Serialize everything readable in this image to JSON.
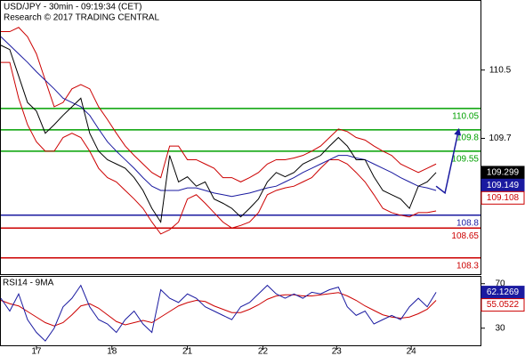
{
  "chart_data": [
    {
      "type": "line",
      "title": "USD/JPY - 30min - 09:19:34 (CET)",
      "subtitle": "Research © 2017 TRADING CENTRAL",
      "x": [
        0,
        1,
        2,
        3,
        4,
        5,
        6,
        7,
        8,
        9,
        10,
        11,
        12,
        13,
        14,
        15,
        16,
        17,
        18,
        19,
        20,
        21,
        22,
        23,
        24,
        25,
        26,
        27,
        28,
        29,
        30,
        31,
        32,
        33,
        34,
        35,
        36,
        37,
        38,
        39,
        40,
        41,
        42,
        43,
        44,
        45,
        46,
        47,
        48,
        49
      ],
      "xlim": [
        0,
        54
      ],
      "ylim": [
        108.11,
        111.31
      ],
      "yticks": [
        110.5,
        109.7
      ],
      "series": [
        {
          "color": "#cc0000",
          "values": [
            110.95,
            110.95,
            111.0,
            110.89,
            110.69,
            110.38,
            110.07,
            110.12,
            110.28,
            110.33,
            110.28,
            110.07,
            109.92,
            109.76,
            109.61,
            109.5,
            109.4,
            109.3,
            109.24,
            109.61,
            109.61,
            109.45,
            109.45,
            109.4,
            109.35,
            109.24,
            109.24,
            109.19,
            109.24,
            109.3,
            109.4,
            109.45,
            109.45,
            109.47,
            109.5,
            109.55,
            109.61,
            109.71,
            109.81,
            109.78,
            109.71,
            109.68,
            109.61,
            109.55,
            109.5,
            109.4,
            109.35,
            109.3,
            109.35,
            109.4
          ]
        },
        {
          "color": "#cc0000",
          "values": [
            110.59,
            110.59,
            110.17,
            109.86,
            109.66,
            109.55,
            109.55,
            109.71,
            109.76,
            109.71,
            109.55,
            109.35,
            109.24,
            109.19,
            109.09,
            108.99,
            108.88,
            108.72,
            108.58,
            108.63,
            108.72,
            108.99,
            109.04,
            108.94,
            108.83,
            108.72,
            108.65,
            108.68,
            108.72,
            108.83,
            109.04,
            109.09,
            109.12,
            109.14,
            109.19,
            109.24,
            109.35,
            109.45,
            109.45,
            109.4,
            109.3,
            109.19,
            109.04,
            108.88,
            108.83,
            108.8,
            108.78,
            108.83,
            108.83,
            108.85
          ]
        },
        {
          "color": "#1a1aa0",
          "values": [
            110.89,
            110.79,
            110.69,
            110.59,
            110.48,
            110.38,
            110.28,
            110.17,
            110.12,
            110.07,
            109.97,
            109.81,
            109.66,
            109.55,
            109.45,
            109.35,
            109.24,
            109.14,
            109.09,
            109.09,
            109.09,
            109.12,
            109.12,
            109.09,
            109.06,
            109.04,
            109.02,
            109.04,
            109.06,
            109.09,
            109.12,
            109.14,
            109.19,
            109.24,
            109.3,
            109.35,
            109.4,
            109.45,
            109.5,
            109.5,
            109.47,
            109.45,
            109.4,
            109.35,
            109.3,
            109.24,
            109.19,
            109.14,
            109.12,
            109.09
          ]
        },
        {
          "color": "#000000",
          "values": [
            110.79,
            110.74,
            110.43,
            110.12,
            110.02,
            109.76,
            109.86,
            109.97,
            110.07,
            110.17,
            109.76,
            109.55,
            109.45,
            109.4,
            109.35,
            109.24,
            109.09,
            108.88,
            108.72,
            109.5,
            109.19,
            109.25,
            109.14,
            109.19,
            108.99,
            108.94,
            108.88,
            108.78,
            108.88,
            108.99,
            109.19,
            109.3,
            109.25,
            109.3,
            109.4,
            109.45,
            109.5,
            109.61,
            109.71,
            109.61,
            109.45,
            109.45,
            109.25,
            109.09,
            109.04,
            108.99,
            108.88,
            109.14,
            109.19,
            109.3
          ]
        }
      ],
      "levels": [
        {
          "value": 110.05,
          "color": "#00a000"
        },
        {
          "value": 109.8,
          "color": "#00a000"
        },
        {
          "value": 109.55,
          "color": "#00a000"
        },
        {
          "value": 108.8,
          "color": "#1a1aa0"
        },
        {
          "value": 108.65,
          "color": "#cc0000"
        },
        {
          "value": 108.3,
          "color": "#cc0000"
        }
      ],
      "forecast": {
        "color": "#1a1aa0",
        "x": [
          49,
          50,
          51.5
        ],
        "values": [
          109.14,
          109.06,
          109.78
        ]
      },
      "last_values": [
        {
          "value": 109.299,
          "color": "#000000"
        },
        {
          "value": 109.149,
          "color": "#1a1aa0"
        },
        {
          "value": 109.108,
          "color": "#cc0000"
        }
      ]
    },
    {
      "type": "line",
      "title": "RSI14 - 9MA",
      "x": [
        0,
        1,
        2,
        3,
        4,
        5,
        6,
        7,
        8,
        9,
        10,
        11,
        12,
        13,
        14,
        15,
        16,
        17,
        18,
        19,
        20,
        21,
        22,
        23,
        24,
        25,
        26,
        27,
        28,
        29,
        30,
        31,
        32,
        33,
        34,
        35,
        36,
        37,
        38,
        39,
        40,
        41,
        42,
        43,
        44,
        45,
        46,
        47,
        48,
        49
      ],
      "xlim": [
        0,
        54
      ],
      "ylim": [
        14.6,
        76.2
      ],
      "yticks": [
        70,
        30
      ],
      "xticks": [
        {
          "value": 4,
          "label": "17"
        },
        {
          "value": 12.5,
          "label": "18"
        },
        {
          "value": 21,
          "label": "21"
        },
        {
          "value": 29.5,
          "label": "22"
        },
        {
          "value": 37.8,
          "label": "23"
        },
        {
          "value": 46.2,
          "label": "24"
        }
      ],
      "series": [
        {
          "color": "#cc0000",
          "values": [
            55,
            52,
            50,
            45,
            40,
            35,
            32,
            35,
            42,
            50,
            52,
            48,
            42,
            36,
            33,
            35,
            37,
            35,
            40,
            45,
            50,
            53,
            55,
            54,
            50,
            47,
            44,
            44,
            47,
            51,
            56,
            59,
            60,
            60,
            59,
            59,
            60,
            61,
            62,
            59,
            55,
            50,
            46,
            42,
            40,
            39,
            40,
            43,
            47,
            55
          ]
        },
        {
          "color": "#1a1aa0",
          "values": [
            56.9,
            45.4,
            60.8,
            37.7,
            26.2,
            18.5,
            30.0,
            49.2,
            56.9,
            68.5,
            49.2,
            37.7,
            33.8,
            26.2,
            37.7,
            45.4,
            33.8,
            26.2,
            64.6,
            56.9,
            53.1,
            60.8,
            56.9,
            49.2,
            45.4,
            41.5,
            37.7,
            49.2,
            53.1,
            60.8,
            68.5,
            60.8,
            56.9,
            60.8,
            56.9,
            62.3,
            60.8,
            64.6,
            66.9,
            49.2,
            41.5,
            45.4,
            33.8,
            37.7,
            41.5,
            37.7,
            49.2,
            56.9,
            49.2,
            62.3
          ]
        }
      ],
      "last_values": [
        {
          "value": 62.1269,
          "color": "#1a1aa0"
        },
        {
          "value": 55.0522,
          "color": "#cc0000"
        }
      ]
    }
  ]
}
